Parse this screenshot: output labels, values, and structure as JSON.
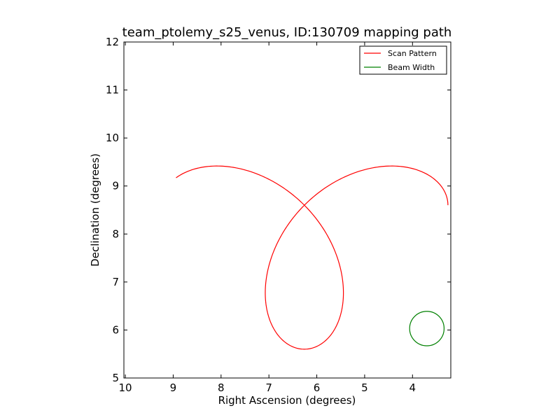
{
  "chart_data": {
    "type": "line",
    "title": "team_ptolemy_s25_venus, ID:130709 mapping path",
    "xlabel": "Right Ascension (degrees)",
    "ylabel": "Declination (degrees)",
    "xlim": [
      10.03,
      3.2
    ],
    "ylim": [
      5,
      12
    ],
    "x_inverted": true,
    "xticks": [
      10,
      9,
      8,
      7,
      6,
      5,
      4
    ],
    "yticks": [
      5,
      6,
      7,
      8,
      9,
      10,
      11,
      12
    ],
    "grid": false,
    "legend_position": "top-right",
    "series": [
      {
        "name": "Scan Pattern",
        "color": "#ff0000",
        "shape": "four-petal rose curve",
        "center": [
          6.26,
          8.6
        ],
        "petal_length": 3.0,
        "t_start_deg": 0,
        "t_end_deg": 168
      },
      {
        "name": "Beam Width",
        "color": "#008000",
        "shape": "circle",
        "center": [
          3.7,
          6.03
        ],
        "radius": 0.36
      }
    ]
  }
}
